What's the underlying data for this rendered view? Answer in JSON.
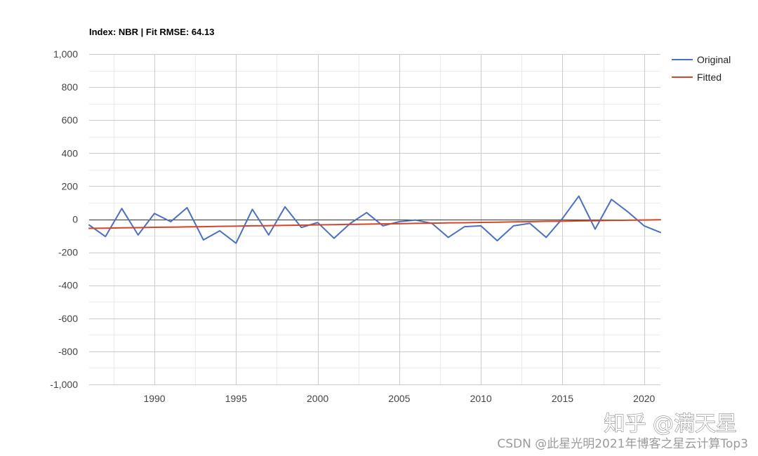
{
  "chart_data": {
    "type": "line",
    "title": "Index: NBR | Fit RMSE: 64.13",
    "xlabel": "",
    "ylabel": "",
    "xlim": [
      1986,
      2021
    ],
    "ylim": [
      -1000,
      1000
    ],
    "grid": true,
    "minor_grid": true,
    "zero_line": true,
    "legend_position": "right",
    "x_ticks": [
      1990,
      1995,
      2000,
      2005,
      2010,
      2015,
      2020
    ],
    "x_tick_labels": [
      "1990",
      "1995",
      "2000",
      "2005",
      "2010",
      "2015",
      "2020"
    ],
    "y_ticks": [
      1000,
      800,
      600,
      400,
      200,
      0,
      -200,
      -400,
      -600,
      -800,
      -1000
    ],
    "y_tick_labels": [
      "1,000",
      "800",
      "600",
      "400",
      "200",
      "0",
      "-200",
      "-400",
      "-600",
      "-800",
      "-1,000"
    ],
    "x": [
      1986,
      1987,
      1988,
      1989,
      1990,
      1991,
      1992,
      1993,
      1994,
      1995,
      1996,
      1997,
      1998,
      1999,
      2000,
      2001,
      2002,
      2003,
      2004,
      2005,
      2006,
      2007,
      2008,
      2009,
      2010,
      2011,
      2012,
      2013,
      2014,
      2015,
      2016,
      2017,
      2018,
      2019,
      2020,
      2021
    ],
    "series": [
      {
        "name": "Original",
        "color": "#4a70c0",
        "values": [
          -35,
          -105,
          65,
          -95,
          35,
          -15,
          70,
          -125,
          -70,
          -145,
          60,
          -95,
          75,
          -50,
          -20,
          -115,
          -25,
          40,
          -40,
          -15,
          -5,
          -25,
          -110,
          -45,
          -40,
          -130,
          -40,
          -25,
          -110,
          5,
          140,
          -60,
          120,
          45,
          -40,
          -80
        ]
      },
      {
        "name": "Fitted",
        "color": "#d4452a",
        "values": [
          -55,
          -54,
          -52,
          -51,
          -49,
          -48,
          -46,
          -45,
          -43,
          -42,
          -40,
          -39,
          -37,
          -36,
          -34,
          -33,
          -31,
          -30,
          -28,
          -27,
          -25,
          -24,
          -22,
          -21,
          -19,
          -18,
          -16,
          -15,
          -13,
          -12,
          -10,
          -9,
          -7,
          -6,
          -5,
          -3
        ]
      }
    ]
  },
  "watermarks": {
    "zhihu": "知乎 @满天星",
    "csdn": "CSDN @此星光明2021年博客之星云计算Top3"
  }
}
